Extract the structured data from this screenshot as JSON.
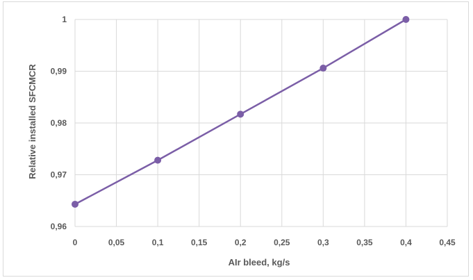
{
  "chart_data": {
    "type": "line",
    "title": "",
    "xlabel": "AIr bleed, kg/s",
    "ylabel": "Relative installed SFCMCR",
    "xlim": [
      0,
      0.45
    ],
    "ylim": [
      0.96,
      1.0
    ],
    "x_ticks": [
      "0",
      "0,05",
      "0,1",
      "0,15",
      "0,2",
      "0,25",
      "0,3",
      "0,35",
      "0,4",
      "0,45"
    ],
    "x_tick_values": [
      0,
      0.05,
      0.1,
      0.15,
      0.2,
      0.25,
      0.3,
      0.35,
      0.4,
      0.45
    ],
    "y_ticks": [
      "0,96",
      "0,97",
      "0,98",
      "0,99",
      "1"
    ],
    "y_tick_values": [
      0.96,
      0.97,
      0.98,
      0.99,
      1.0
    ],
    "grid": true,
    "legend": "none",
    "series": [
      {
        "color": "#7b5ea7",
        "x": [
          0,
          0.1,
          0.2,
          0.3,
          0.4
        ],
        "y": [
          0.9643,
          0.9728,
          0.9817,
          0.9906,
          1.0
        ]
      }
    ]
  }
}
